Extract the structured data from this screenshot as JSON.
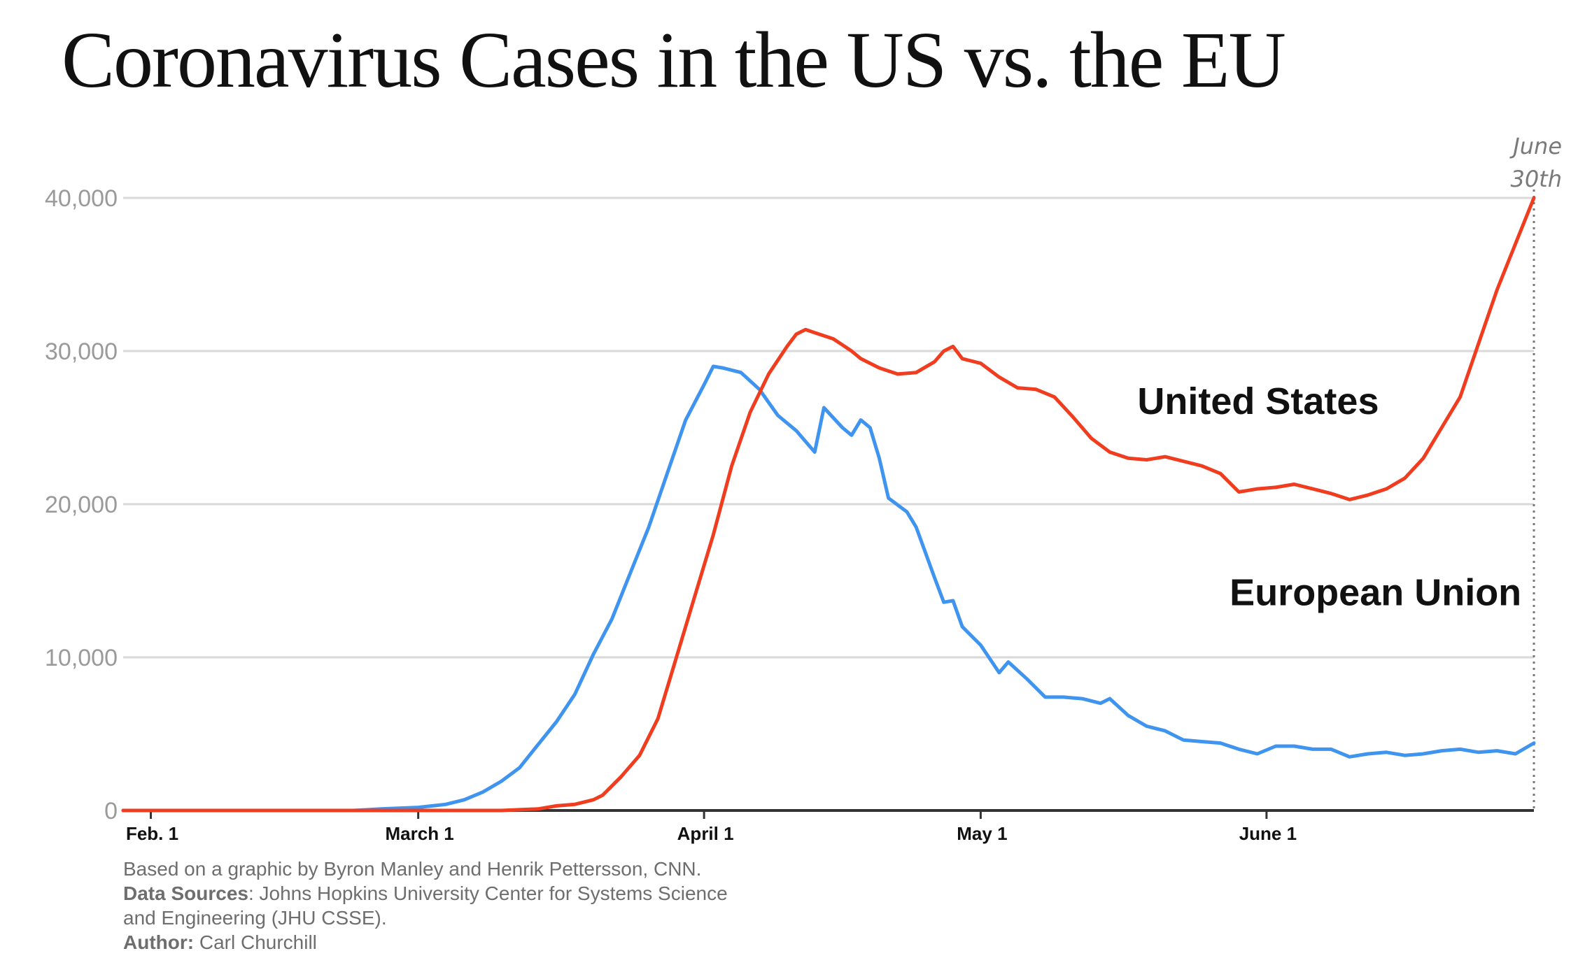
{
  "title": "Coronavirus Cases in the US vs. the EU",
  "chart_data": {
    "type": "line",
    "title": "Coronavirus Cases in the US vs. the EU",
    "xlabel": "",
    "ylabel": "",
    "x_range": [
      "2020-01-29",
      "2020-06-30"
    ],
    "y_range": [
      0,
      40000
    ],
    "y_ticks": [
      0,
      10000,
      20000,
      30000,
      40000
    ],
    "y_tick_labels": [
      "0",
      "10,000",
      "20,000",
      "30,000",
      "40,000"
    ],
    "x_ticks": [
      "2020-02-01",
      "2020-03-01",
      "2020-04-01",
      "2020-05-01",
      "2020-06-01"
    ],
    "x_tick_labels": [
      "Feb. 1",
      "March 1",
      "April 1",
      "May 1",
      "June 1"
    ],
    "grid": "horizontal",
    "legend": "inline labels",
    "marker": {
      "date": "2020-06-30",
      "label_lines": [
        "June",
        "30th"
      ]
    },
    "series": [
      {
        "name": "United States",
        "color": "#f03c1f",
        "label_anchor": {
          "date": "2020-05-18",
          "value": 25900
        },
        "points": [
          [
            "2020-01-29",
            0
          ],
          [
            "2020-02-15",
            0
          ],
          [
            "2020-03-01",
            0
          ],
          [
            "2020-03-10",
            0
          ],
          [
            "2020-03-14",
            100
          ],
          [
            "2020-03-16",
            300
          ],
          [
            "2020-03-18",
            400
          ],
          [
            "2020-03-20",
            700
          ],
          [
            "2020-03-21",
            1000
          ],
          [
            "2020-03-23",
            2200
          ],
          [
            "2020-03-25",
            3600
          ],
          [
            "2020-03-27",
            6000
          ],
          [
            "2020-03-29",
            10000
          ],
          [
            "2020-03-31",
            14000
          ],
          [
            "2020-04-02",
            18000
          ],
          [
            "2020-04-04",
            22500
          ],
          [
            "2020-04-06",
            26000
          ],
          [
            "2020-04-08",
            28500
          ],
          [
            "2020-04-10",
            30300
          ],
          [
            "2020-04-11",
            31100
          ],
          [
            "2020-04-12",
            31400
          ],
          [
            "2020-04-13",
            31200
          ],
          [
            "2020-04-14",
            31000
          ],
          [
            "2020-04-15",
            30800
          ],
          [
            "2020-04-16",
            30400
          ],
          [
            "2020-04-17",
            30000
          ],
          [
            "2020-04-18",
            29500
          ],
          [
            "2020-04-20",
            28900
          ],
          [
            "2020-04-22",
            28500
          ],
          [
            "2020-04-24",
            28600
          ],
          [
            "2020-04-26",
            29300
          ],
          [
            "2020-04-27",
            30000
          ],
          [
            "2020-04-28",
            30300
          ],
          [
            "2020-04-29",
            29500
          ],
          [
            "2020-05-01",
            29200
          ],
          [
            "2020-05-03",
            28300
          ],
          [
            "2020-05-05",
            27600
          ],
          [
            "2020-05-07",
            27500
          ],
          [
            "2020-05-09",
            27000
          ],
          [
            "2020-05-11",
            25700
          ],
          [
            "2020-05-13",
            24300
          ],
          [
            "2020-05-15",
            23400
          ],
          [
            "2020-05-17",
            23000
          ],
          [
            "2020-05-19",
            22900
          ],
          [
            "2020-05-21",
            23100
          ],
          [
            "2020-05-23",
            22800
          ],
          [
            "2020-05-25",
            22500
          ],
          [
            "2020-05-27",
            22000
          ],
          [
            "2020-05-29",
            20800
          ],
          [
            "2020-05-31",
            21000
          ],
          [
            "2020-06-02",
            21100
          ],
          [
            "2020-06-04",
            21300
          ],
          [
            "2020-06-06",
            21000
          ],
          [
            "2020-06-08",
            20700
          ],
          [
            "2020-06-10",
            20300
          ],
          [
            "2020-06-12",
            20600
          ],
          [
            "2020-06-14",
            21000
          ],
          [
            "2020-06-16",
            21700
          ],
          [
            "2020-06-18",
            23000
          ],
          [
            "2020-06-20",
            25000
          ],
          [
            "2020-06-22",
            27000
          ],
          [
            "2020-06-24",
            30500
          ],
          [
            "2020-06-26",
            34000
          ],
          [
            "2020-06-28",
            37000
          ],
          [
            "2020-06-30",
            40000
          ]
        ]
      },
      {
        "name": "European Union",
        "color": "#3f94ef",
        "label_anchor": {
          "date": "2020-05-28",
          "value": 13400
        },
        "points": [
          [
            "2020-01-29",
            0
          ],
          [
            "2020-02-15",
            0
          ],
          [
            "2020-02-23",
            0
          ],
          [
            "2020-02-26",
            100
          ],
          [
            "2020-03-01",
            200
          ],
          [
            "2020-03-04",
            400
          ],
          [
            "2020-03-06",
            700
          ],
          [
            "2020-03-08",
            1200
          ],
          [
            "2020-03-10",
            1900
          ],
          [
            "2020-03-12",
            2800
          ],
          [
            "2020-03-14",
            4300
          ],
          [
            "2020-03-16",
            5800
          ],
          [
            "2020-03-18",
            7600
          ],
          [
            "2020-03-20",
            10200
          ],
          [
            "2020-03-22",
            12500
          ],
          [
            "2020-03-24",
            15500
          ],
          [
            "2020-03-26",
            18500
          ],
          [
            "2020-03-28",
            22000
          ],
          [
            "2020-03-30",
            25500
          ],
          [
            "2020-04-01",
            27800
          ],
          [
            "2020-04-02",
            29000
          ],
          [
            "2020-04-03",
            28900
          ],
          [
            "2020-04-05",
            28600
          ],
          [
            "2020-04-07",
            27500
          ],
          [
            "2020-04-09",
            25800
          ],
          [
            "2020-04-11",
            24800
          ],
          [
            "2020-04-13",
            23400
          ],
          [
            "2020-04-14",
            26300
          ],
          [
            "2020-04-16",
            25000
          ],
          [
            "2020-04-17",
            24500
          ],
          [
            "2020-04-18",
            25500
          ],
          [
            "2020-04-19",
            25000
          ],
          [
            "2020-04-20",
            23000
          ],
          [
            "2020-04-21",
            20400
          ],
          [
            "2020-04-23",
            19500
          ],
          [
            "2020-04-24",
            18500
          ],
          [
            "2020-04-26",
            15200
          ],
          [
            "2020-04-27",
            13600
          ],
          [
            "2020-04-28",
            13700
          ],
          [
            "2020-04-29",
            12000
          ],
          [
            "2020-05-01",
            10800
          ],
          [
            "2020-05-03",
            9000
          ],
          [
            "2020-05-04",
            9700
          ],
          [
            "2020-05-06",
            8600
          ],
          [
            "2020-05-08",
            7400
          ],
          [
            "2020-05-10",
            7400
          ],
          [
            "2020-05-12",
            7300
          ],
          [
            "2020-05-14",
            7000
          ],
          [
            "2020-05-15",
            7300
          ],
          [
            "2020-05-17",
            6200
          ],
          [
            "2020-05-19",
            5500
          ],
          [
            "2020-05-21",
            5200
          ],
          [
            "2020-05-23",
            4600
          ],
          [
            "2020-05-25",
            4500
          ],
          [
            "2020-05-27",
            4400
          ],
          [
            "2020-05-29",
            4000
          ],
          [
            "2020-05-31",
            3700
          ],
          [
            "2020-06-02",
            4200
          ],
          [
            "2020-06-04",
            4200
          ],
          [
            "2020-06-06",
            4000
          ],
          [
            "2020-06-08",
            4000
          ],
          [
            "2020-06-10",
            3500
          ],
          [
            "2020-06-12",
            3700
          ],
          [
            "2020-06-14",
            3800
          ],
          [
            "2020-06-16",
            3600
          ],
          [
            "2020-06-18",
            3700
          ],
          [
            "2020-06-20",
            3900
          ],
          [
            "2020-06-22",
            4000
          ],
          [
            "2020-06-24",
            3800
          ],
          [
            "2020-06-26",
            3900
          ],
          [
            "2020-06-28",
            3700
          ],
          [
            "2020-06-30",
            4400
          ]
        ]
      }
    ]
  },
  "footnote": {
    "line1": "Based on a graphic by Byron Manley and Henrik Pettersson, CNN.",
    "sources_label": "Data Sources",
    "sources_text": ": Johns Hopkins University Center for Systems Science",
    "sources_text_2": "and Engineering (JHU CSSE).",
    "author_label": "Author:",
    "author_text": " Carl Churchill"
  }
}
